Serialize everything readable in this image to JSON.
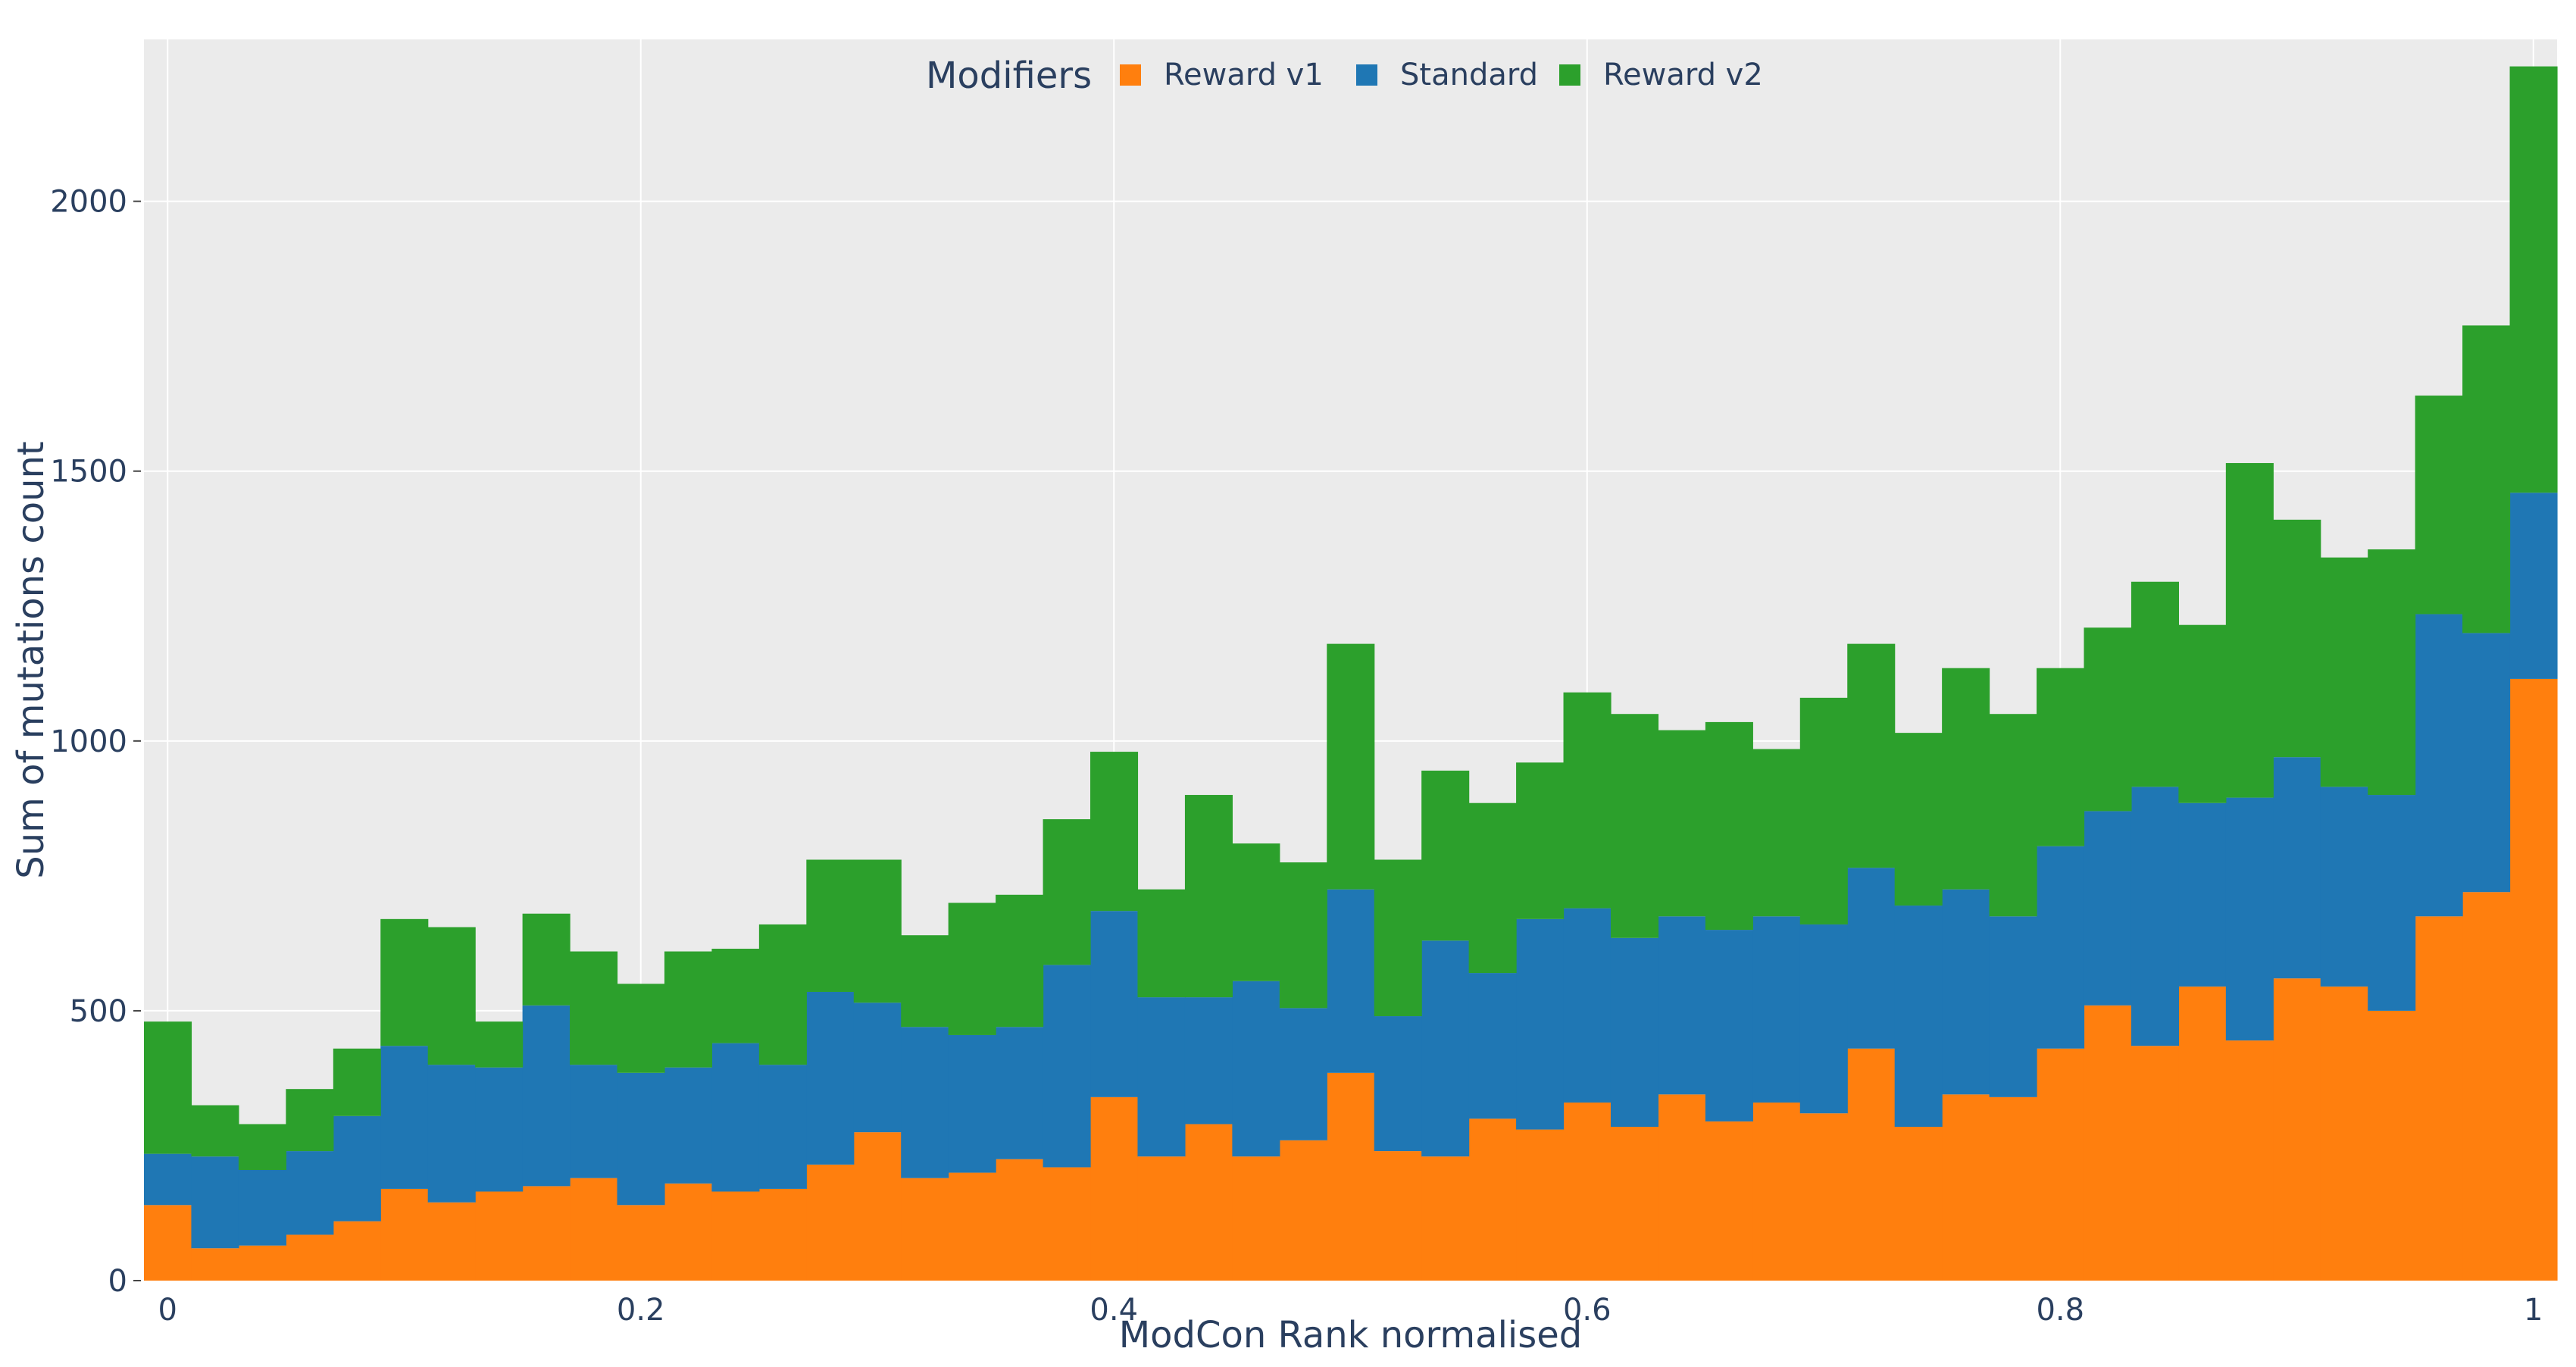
{
  "colors": {
    "plot_bg": "#ebebeb",
    "grid": "#ffffff",
    "text": "#2a3f5f"
  },
  "chart_data": {
    "type": "bar",
    "stacked": true,
    "title": "",
    "xlabel": "ModCon Rank normalised",
    "ylabel": "Sum of mutations count",
    "xlim": [
      -0.01,
      1.01
    ],
    "ylim": [
      0,
      2300
    ],
    "x_ticks": [
      0,
      0.2,
      0.4,
      0.6,
      0.8,
      1
    ],
    "x_tick_labels": [
      "0",
      "0.2",
      "0.4",
      "0.6",
      "0.8",
      "1"
    ],
    "y_ticks": [
      0,
      500,
      1000,
      1500,
      2000
    ],
    "y_tick_labels": [
      "0",
      "500",
      "1000",
      "1500",
      "2000"
    ],
    "grid": true,
    "bin_edges": [
      -0.01,
      0.01,
      0.03,
      0.05,
      0.07,
      0.09,
      0.11,
      0.13,
      0.15,
      0.17,
      0.19,
      0.21,
      0.23,
      0.25,
      0.27,
      0.29,
      0.31,
      0.33,
      0.35,
      0.37,
      0.39,
      0.41,
      0.43,
      0.45,
      0.47,
      0.49,
      0.51,
      0.53,
      0.55,
      0.57,
      0.59,
      0.61,
      0.63,
      0.65,
      0.67,
      0.69,
      0.71,
      0.73,
      0.75,
      0.77,
      0.79,
      0.81,
      0.83,
      0.85,
      0.87,
      0.89,
      0.91,
      0.93,
      0.95,
      0.97,
      0.99,
      1.01
    ],
    "legend": {
      "title": "Modifiers",
      "placement": "top-center",
      "orientation": "horizontal"
    },
    "series": [
      {
        "name": "Reward v1",
        "color": "#ff7f0e",
        "values": [
          140,
          60,
          65,
          85,
          110,
          170,
          145,
          165,
          175,
          190,
          140,
          180,
          165,
          170,
          215,
          275,
          190,
          200,
          225,
          210,
          340,
          230,
          290,
          230,
          260,
          385,
          240,
          230,
          300,
          280,
          330,
          285,
          345,
          295,
          330,
          310,
          430,
          285,
          345,
          340,
          430,
          510,
          435,
          545,
          445,
          560,
          545,
          500,
          675,
          720,
          1115
        ]
      },
      {
        "name": "Standard",
        "color": "#1f77b4",
        "values": [
          95,
          170,
          140,
          155,
          195,
          265,
          255,
          230,
          335,
          210,
          245,
          215,
          275,
          230,
          320,
          240,
          280,
          255,
          245,
          375,
          345,
          295,
          235,
          325,
          245,
          340,
          250,
          400,
          270,
          390,
          360,
          350,
          330,
          355,
          345,
          350,
          335,
          410,
          380,
          335,
          375,
          360,
          480,
          340,
          450,
          410,
          370,
          400,
          560,
          480,
          345
        ]
      },
      {
        "name": "Reward v2",
        "color": "#2ca02c",
        "values": [
          245,
          95,
          85,
          115,
          125,
          235,
          255,
          85,
          170,
          210,
          165,
          215,
          175,
          260,
          245,
          265,
          170,
          245,
          245,
          270,
          295,
          200,
          375,
          255,
          270,
          455,
          290,
          315,
          315,
          290,
          400,
          415,
          345,
          385,
          310,
          420,
          415,
          320,
          410,
          375,
          330,
          340,
          380,
          330,
          620,
          440,
          425,
          455,
          405,
          570,
          790
        ]
      }
    ]
  }
}
